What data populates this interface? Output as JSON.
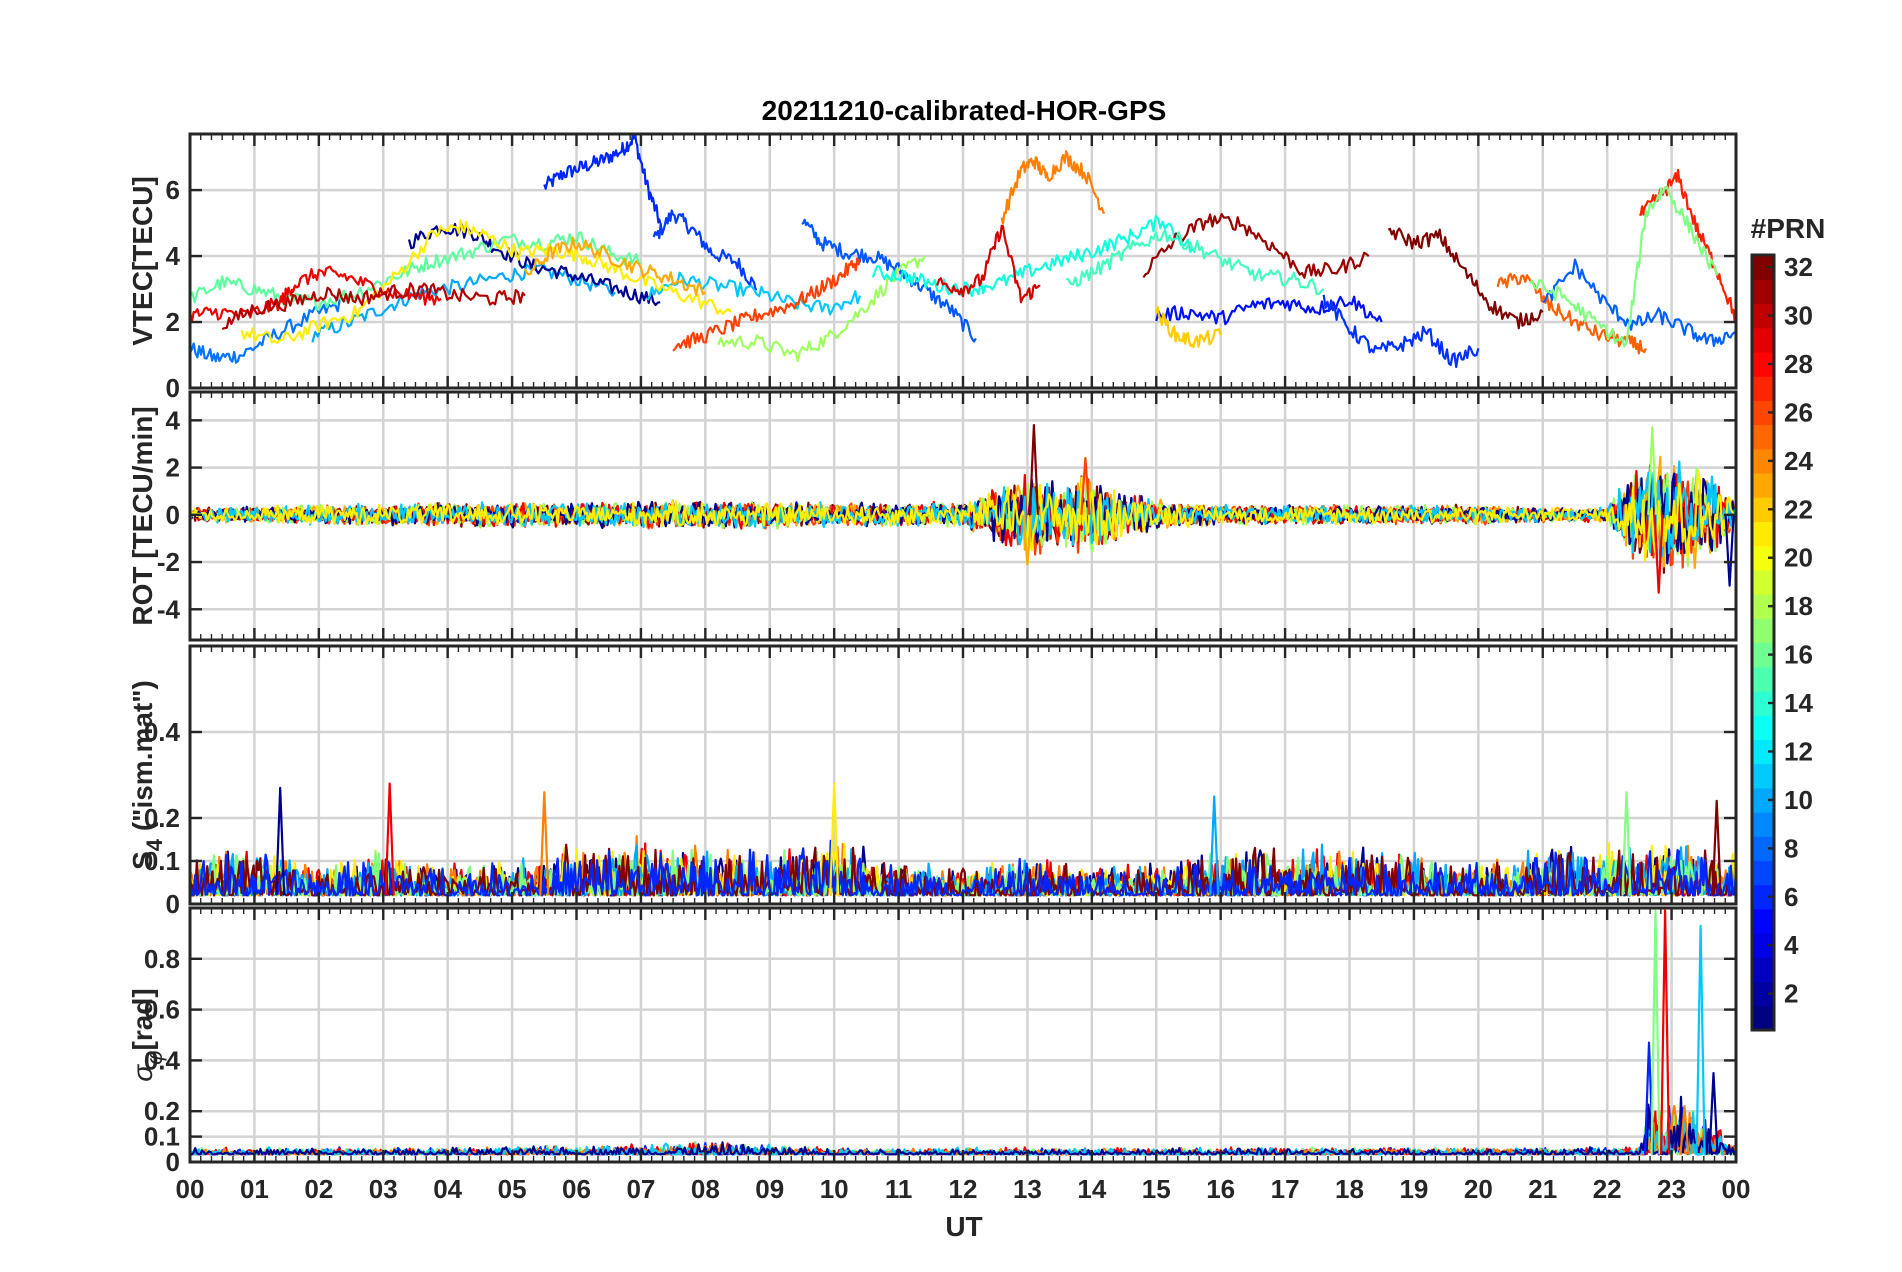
{
  "chart_data": {
    "type": "line",
    "title": "20211210-calibrated-HOR-GPS",
    "xlabel": "UT",
    "x_ticks": [
      "00",
      "01",
      "02",
      "03",
      "04",
      "05",
      "06",
      "07",
      "08",
      "09",
      "10",
      "11",
      "12",
      "13",
      "14",
      "15",
      "16",
      "17",
      "18",
      "19",
      "20",
      "21",
      "22",
      "23",
      "00"
    ],
    "xlim_hours": [
      0,
      24
    ],
    "colorbar": {
      "label": "#PRN",
      "range": [
        1,
        32
      ],
      "ticks": [
        "2",
        "4",
        "6",
        "8",
        "10",
        "12",
        "14",
        "16",
        "18",
        "20",
        "22",
        "24",
        "26",
        "28",
        "30",
        "32"
      ],
      "colormap": "jet"
    },
    "panels": [
      {
        "id": "vtec",
        "ylabel": "VTEC[TECU]",
        "ylim": [
          0,
          7.7
        ],
        "yticks": [
          0,
          2,
          4,
          6
        ],
        "ytick_labels": [
          "0",
          "2",
          "4",
          "6"
        ],
        "mode": "tracks",
        "series": [
          {
            "prn": 3,
            "color": "#0026ff",
            "x": [
              5.5,
              5.8,
              6.1,
              6.4,
              6.7,
              6.9,
              7.1,
              7.3
            ],
            "y": [
              6.1,
              6.5,
              6.7,
              6.9,
              7.2,
              7.6,
              6.1,
              5.0
            ]
          },
          {
            "prn": 5,
            "color": "#003cff",
            "x": [
              7.2,
              7.5,
              7.8,
              8.1,
              8.5,
              8.8
            ],
            "y": [
              4.5,
              5.3,
              4.8,
              4.1,
              3.8,
              3.0
            ]
          },
          {
            "prn": 9,
            "color": "#0073ff",
            "x": [
              0.0,
              0.4,
              0.8,
              1.3,
              1.9,
              2.4
            ],
            "y": [
              1.2,
              0.9,
              1.0,
              1.6,
              2.2,
              2.6
            ]
          },
          {
            "prn": 11,
            "color": "#00aaff",
            "x": [
              1.9,
              2.5,
              3.1,
              3.6,
              4.2,
              4.9,
              5.4,
              6.0,
              6.6
            ],
            "y": [
              1.6,
              2.0,
              2.5,
              2.9,
              3.1,
              3.4,
              3.6,
              3.3,
              2.9
            ]
          },
          {
            "prn": 1,
            "color": "#00008f",
            "x": [
              3.4,
              3.9,
              4.4,
              4.8,
              5.3,
              5.8,
              6.3,
              6.8,
              7.3
            ],
            "y": [
              4.4,
              4.9,
              4.7,
              4.2,
              3.7,
              3.5,
              3.2,
              2.9,
              2.6
            ]
          },
          {
            "prn": 7,
            "color": "#0058ff",
            "x": [
              9.5,
              9.8,
              10.2,
              10.6,
              11.0,
              11.4,
              11.8,
              12.2
            ],
            "y": [
              5.1,
              4.4,
              4.1,
              4.0,
              3.6,
              3.0,
              2.4,
              1.5
            ]
          },
          {
            "prn": 12,
            "color": "#00c8ff",
            "x": [
              7.1,
              7.6,
              8.2,
              8.8,
              9.3,
              9.9,
              10.4
            ],
            "y": [
              2.8,
              3.3,
              3.1,
              2.9,
              2.6,
              2.4,
              2.8
            ]
          },
          {
            "prn": 16,
            "color": "#5fff9f",
            "x": [
              0.0,
              0.5,
              1.0,
              1.5,
              2.0,
              2.6,
              3.2,
              3.7,
              4.3,
              4.9,
              5.5,
              6.0,
              6.5,
              7.0
            ],
            "y": [
              2.7,
              3.2,
              3.0,
              2.7,
              2.6,
              2.9,
              3.4,
              3.8,
              4.1,
              4.5,
              4.4,
              4.6,
              4.1,
              3.8
            ]
          },
          {
            "prn": 18,
            "color": "#9fff5f",
            "x": [
              8.2,
              8.8,
              9.4,
              9.9,
              10.4,
              10.9,
              11.4
            ],
            "y": [
              1.4,
              1.4,
              1.0,
              1.5,
              2.3,
              3.3,
              4.0
            ]
          },
          {
            "prn": 20,
            "color": "#ffee00",
            "x": [
              0.8,
              1.4,
              2.0,
              2.6,
              3.2,
              3.8,
              4.2,
              4.6,
              5.1,
              5.6,
              6.1,
              6.6,
              7.2,
              7.8,
              8.4
            ],
            "y": [
              1.7,
              1.4,
              1.9,
              2.3,
              3.4,
              4.7,
              4.9,
              4.6,
              4.1,
              4.2,
              4.0,
              3.6,
              3.1,
              2.7,
              2.3
            ]
          },
          {
            "prn": 22,
            "color": "#ffaa00",
            "x": [
              5.2,
              5.6,
              6.0,
              6.5,
              7.0,
              7.5,
              8.0
            ],
            "y": [
              3.4,
              4.1,
              4.4,
              4.0,
              3.6,
              3.3,
              2.9
            ]
          },
          {
            "prn": 24,
            "color": "#ff8000",
            "x": [
              12.6,
              12.9,
              13.1,
              13.3,
              13.6,
              13.9,
              14.2
            ],
            "y": [
              5.1,
              6.6,
              6.9,
              6.4,
              7.0,
              6.5,
              5.3
            ]
          },
          {
            "prn": 26,
            "color": "#ff4000",
            "x": [
              7.5,
              7.9,
              8.4,
              8.8,
              9.3,
              9.7,
              10.1,
              10.4
            ],
            "y": [
              1.3,
              1.5,
              1.9,
              2.2,
              2.5,
              2.9,
              3.4,
              3.9
            ]
          },
          {
            "prn": 28,
            "color": "#ee0000",
            "x": [
              0.0,
              0.4,
              0.9,
              1.4,
              1.6,
              2.0,
              2.4,
              2.9,
              3.4,
              3.9
            ],
            "y": [
              2.2,
              2.3,
              2.2,
              2.6,
              3.1,
              3.5,
              3.4,
              3.0,
              2.8,
              2.7
            ]
          },
          {
            "prn": 30,
            "color": "#b30000",
            "x": [
              0.5,
              1.0,
              1.6,
              2.1,
              2.6,
              3.1,
              3.6,
              4.1,
              4.7,
              5.2
            ],
            "y": [
              1.9,
              2.4,
              2.6,
              2.9,
              2.7,
              2.9,
              3.0,
              2.8,
              2.7,
              2.8
            ]
          },
          {
            "prn": 13,
            "color": "#10ffdf",
            "x": [
              10.6,
              11.1,
              11.6,
              12.1,
              12.6,
              13.1,
              13.6,
              14.1,
              14.6,
              15.1,
              15.6
            ],
            "y": [
              3.5,
              3.4,
              3.1,
              3.0,
              3.2,
              3.6,
              3.9,
              4.2,
              4.6,
              5.1,
              4.1
            ]
          },
          {
            "prn": 29,
            "color": "#d40000",
            "x": [
              11.6,
              12.0,
              12.3,
              12.6,
              12.9,
              13.2
            ],
            "y": [
              3.2,
              3.0,
              3.3,
              4.9,
              2.7,
              3.1
            ]
          },
          {
            "prn": 31,
            "color": "#990000",
            "x": [
              14.8,
              15.3,
              15.8,
              16.3,
              16.8,
              17.3,
              17.8,
              18.3
            ],
            "y": [
              3.5,
              4.5,
              5.1,
              5.0,
              4.3,
              3.5,
              3.6,
              4.0
            ]
          },
          {
            "prn": 4,
            "color": "#0010ff",
            "x": [
              15.0,
              15.5,
              16.0,
              16.5,
              17.0,
              17.5,
              18.0,
              18.5
            ],
            "y": [
              2.2,
              2.3,
              2.1,
              2.5,
              2.6,
              2.4,
              2.7,
              2.0
            ]
          },
          {
            "prn": 15,
            "color": "#40ffbf",
            "x": [
              13.6,
              14.1,
              14.6,
              15.1,
              15.6,
              16.1,
              16.6,
              17.1,
              17.6
            ],
            "y": [
              3.1,
              3.6,
              4.2,
              4.7,
              4.3,
              3.8,
              3.4,
              3.3,
              3.0
            ]
          },
          {
            "prn": 21,
            "color": "#ffcc00",
            "x": [
              15.0,
              15.3,
              15.6,
              16.0
            ],
            "y": [
              2.3,
              1.6,
              1.4,
              1.6
            ]
          },
          {
            "prn": 32,
            "color": "#800000",
            "x": [
              18.6,
              19.0,
              19.4,
              19.8,
              20.2,
              20.6,
              21.0
            ],
            "y": [
              4.8,
              4.4,
              4.6,
              3.5,
              2.5,
              2.0,
              2.3
            ]
          },
          {
            "prn": 6,
            "color": "#0030ff",
            "x": [
              17.6,
              18.0,
              18.4,
              18.8,
              19.2,
              19.6,
              20.0
            ],
            "y": [
              2.7,
              1.8,
              1.1,
              1.3,
              1.7,
              0.8,
              1.2
            ]
          },
          {
            "prn": 25,
            "color": "#ff6000",
            "x": [
              20.3,
              20.7,
              21.1,
              21.5,
              21.9,
              22.3,
              22.6
            ],
            "y": [
              3.1,
              3.4,
              2.5,
              2.0,
              1.6,
              1.4,
              1.2
            ]
          },
          {
            "prn": 27,
            "color": "#ff2000",
            "x": [
              22.5,
              22.8,
              23.1,
              23.4,
              23.7,
              24.0
            ],
            "y": [
              5.2,
              5.8,
              6.4,
              4.8,
              3.6,
              2.1
            ]
          },
          {
            "prn": 8,
            "color": "#0060ff",
            "x": [
              21.0,
              21.5,
              22.0,
              22.4,
              22.8,
              23.2,
              23.6,
              24.0
            ],
            "y": [
              2.5,
              3.7,
              2.5,
              1.9,
              2.2,
              1.8,
              1.4,
              1.7
            ]
          },
          {
            "prn": 17,
            "color": "#80ff80",
            "x": [
              20.8,
              21.3,
              21.8,
              22.3,
              22.6,
              22.9,
              23.3,
              23.7
            ],
            "y": [
              3.2,
              2.8,
              2.0,
              1.3,
              5.3,
              6.1,
              4.8,
              3.4
            ]
          }
        ]
      },
      {
        "id": "rot",
        "ylabel": "ROT [TECU/min]",
        "ylim": [
          -5.3,
          5.2
        ],
        "yticks": [
          -4,
          -2,
          0,
          2,
          4
        ],
        "ytick_labels": [
          "-4",
          "-2",
          "0",
          "2",
          "4"
        ],
        "mode": "noise",
        "baseline": 0,
        "amplitude_profile": {
          "hours": [
            0,
            2,
            4,
            6,
            8,
            10,
            12,
            12.5,
            13,
            13.5,
            14,
            14.5,
            15,
            16,
            18,
            20,
            21,
            22,
            22.5,
            23,
            23.5,
            24
          ],
          "values": [
            0.3,
            0.4,
            0.5,
            0.5,
            0.6,
            0.5,
            0.5,
            1.1,
            1.8,
            1.4,
            1.7,
            1.0,
            0.6,
            0.4,
            0.4,
            0.4,
            0.3,
            0.3,
            2.2,
            2.6,
            2.0,
            0.6
          ]
        },
        "peak_events": [
          {
            "hour": 13.1,
            "value": 3.8
          },
          {
            "hour": 13.9,
            "value": 2.4
          },
          {
            "hour": 13.0,
            "value": -2.1
          },
          {
            "hour": 22.7,
            "value": 3.7
          },
          {
            "hour": 22.8,
            "value": -3.3
          },
          {
            "hour": 23.9,
            "value": -3.0
          }
        ],
        "series_colors": [
          "#800000",
          "#ff4000",
          "#ffaa00",
          "#9fff5f",
          "#ee0000",
          "#00008f",
          "#00c8ff",
          "#ffee00"
        ]
      },
      {
        "id": "s4",
        "ylabel": "S4 (\"ism.mat\")",
        "ylabel_parts": {
          "main": "S",
          "sub": "4",
          "rest": " (\"ism.mat\")"
        },
        "ylim": [
          0,
          0.6
        ],
        "yticks": [
          0,
          0.1,
          0.2,
          0.4
        ],
        "ytick_labels": [
          "0",
          "0.1",
          "0.2",
          "0.4"
        ],
        "mode": "positive-noise",
        "baseline": 0.02,
        "amplitude_profile": {
          "hours": [
            0,
            1,
            2,
            3,
            4,
            5,
            6,
            7,
            8,
            9,
            10,
            11,
            12,
            13,
            14,
            15,
            16,
            17,
            18,
            19,
            20,
            21,
            22,
            23,
            24
          ],
          "values": [
            0.07,
            0.09,
            0.05,
            0.08,
            0.06,
            0.06,
            0.09,
            0.1,
            0.09,
            0.08,
            0.1,
            0.06,
            0.05,
            0.07,
            0.05,
            0.06,
            0.09,
            0.08,
            0.09,
            0.08,
            0.06,
            0.08,
            0.09,
            0.1,
            0.07
          ]
        },
        "peak_events": [
          {
            "hour": 1.4,
            "value": 0.27
          },
          {
            "hour": 3.1,
            "value": 0.28
          },
          {
            "hour": 5.5,
            "value": 0.26
          },
          {
            "hour": 10.0,
            "value": 0.28
          },
          {
            "hour": 15.9,
            "value": 0.25
          },
          {
            "hour": 22.3,
            "value": 0.26
          },
          {
            "hour": 23.7,
            "value": 0.24
          }
        ],
        "series_colors": [
          "#00008f",
          "#ee0000",
          "#ff8000",
          "#ffee00",
          "#00aaff",
          "#80ff80",
          "#800000",
          "#0026ff"
        ]
      },
      {
        "id": "sigma",
        "ylabel": "σφ[rad]",
        "ylabel_parts": {
          "main": "σ",
          "sub": "φ",
          "rest": "[rad]"
        },
        "ylim": [
          0,
          1.0
        ],
        "yticks": [
          0,
          0.1,
          0.2,
          0.4,
          0.6,
          0.8
        ],
        "ytick_labels": [
          "0",
          "0.1",
          "0.2",
          "0.4",
          "0.6",
          "0.8"
        ],
        "mode": "positive-noise",
        "baseline": 0.03,
        "amplitude_profile": {
          "hours": [
            0,
            4,
            7,
            8,
            10,
            12,
            16,
            20,
            22.5,
            22.6,
            23,
            23.5,
            23.9,
            24
          ],
          "values": [
            0.02,
            0.02,
            0.03,
            0.04,
            0.02,
            0.02,
            0.02,
            0.02,
            0.02,
            0.15,
            0.2,
            0.15,
            0.05,
            0.02
          ]
        },
        "peak_events": [
          {
            "hour": 22.65,
            "value": 0.47
          },
          {
            "hour": 22.75,
            "value": 0.99
          },
          {
            "hour": 22.9,
            "value": 0.99
          },
          {
            "hour": 23.2,
            "value": 0.22
          },
          {
            "hour": 23.45,
            "value": 0.93
          },
          {
            "hour": 23.65,
            "value": 0.35
          }
        ],
        "series_colors": [
          "#0026ff",
          "#80ff80",
          "#ee0000",
          "#ff8000",
          "#00c8ff",
          "#00008f"
        ]
      }
    ]
  }
}
